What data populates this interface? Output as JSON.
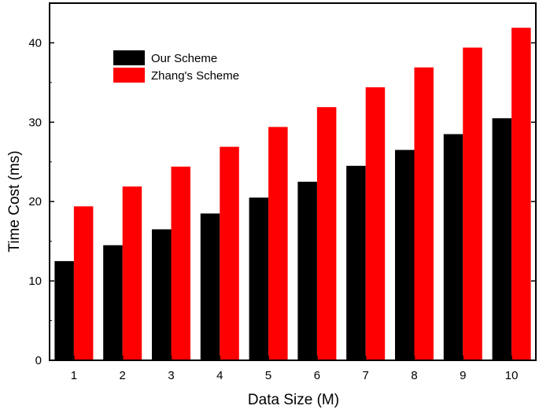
{
  "chart_data": {
    "type": "bar",
    "title": "",
    "xlabel": "Data Size (M)",
    "ylabel": "Time Cost (ms)",
    "categories": [
      "1",
      "2",
      "3",
      "4",
      "5",
      "6",
      "7",
      "8",
      "9",
      "10"
    ],
    "series": [
      {
        "name": "Our Scheme",
        "color": "#000000",
        "values": [
          12.5,
          14.5,
          16.5,
          18.5,
          20.5,
          22.5,
          24.5,
          26.5,
          28.5,
          30.5
        ]
      },
      {
        "name": "Zhang's Scheme",
        "color": "#ff0000",
        "values": [
          19.4,
          21.9,
          24.4,
          26.9,
          29.4,
          31.9,
          34.4,
          36.9,
          39.4,
          41.9
        ]
      }
    ],
    "ylim": [
      0,
      45
    ],
    "yticks": [
      0,
      10,
      20,
      30,
      40
    ],
    "grid": false,
    "legend_position": "top-left"
  }
}
